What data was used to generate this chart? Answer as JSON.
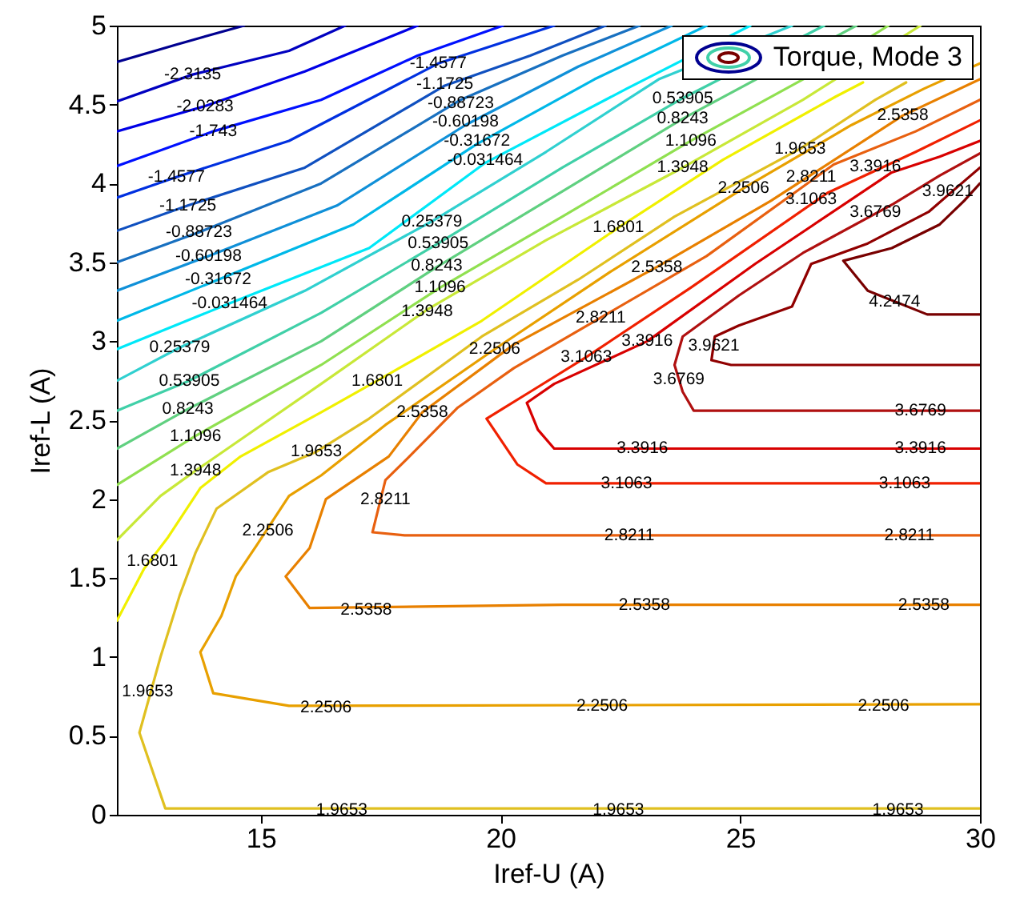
{
  "chart_data": {
    "type": "line",
    "xlabel": "Iref-U (A)",
    "ylabel": "Iref-L (A)",
    "legend_title": "Torque, Mode 3",
    "xlim": [
      12,
      30
    ],
    "ylim": [
      0,
      5
    ],
    "xticks": [
      15,
      20,
      25,
      30
    ],
    "yticks": [
      0,
      0.5,
      1,
      1.5,
      2,
      2.5,
      3,
      3.5,
      4,
      4.5,
      5
    ],
    "series": [
      {
        "color": "#000090",
        "x": [
          12,
          13.24,
          14.65
        ],
        "values": [
          4.77,
          4.88,
          5.0
        ]
      },
      {
        "color": "#0000c0",
        "x": [
          12,
          13.58,
          15.59,
          16.76
        ],
        "values": [
          4.52,
          4.69,
          4.84,
          5.0
        ]
      },
      {
        "color": "#0000e6",
        "x": [
          12,
          13.84,
          15.92,
          18.27
        ],
        "values": [
          4.33,
          4.49,
          4.71,
          5.0
        ]
      },
      {
        "color": "#0010ff",
        "x": [
          12,
          14.01,
          16.26,
          18.27,
          20.05
        ],
        "values": [
          4.11,
          4.33,
          4.53,
          4.81,
          5.0
        ]
      },
      {
        "color": "#0030e0",
        "x": [
          12,
          13.24,
          15.59,
          18.7,
          21.12
        ],
        "values": [
          3.91,
          4.04,
          4.27,
          4.76,
          5.0
        ]
      },
      {
        "color": "#1050c0",
        "x": [
          12,
          13.48,
          15.92,
          18.84,
          20.62,
          22.19
        ],
        "values": [
          3.7,
          3.86,
          4.1,
          4.62,
          4.81,
          5.0
        ]
      },
      {
        "color": "#1870c0",
        "x": [
          12,
          13.71,
          16.26,
          19.17,
          21.29,
          22.9
        ],
        "values": [
          3.5,
          3.69,
          4.0,
          4.53,
          4.81,
          5.0
        ]
      },
      {
        "color": "#1090d8",
        "x": [
          12,
          13.91,
          16.59,
          19.27,
          21.62,
          23.57
        ],
        "values": [
          3.32,
          3.54,
          3.86,
          4.37,
          4.74,
          5.0
        ]
      },
      {
        "color": "#00b8e8",
        "x": [
          12,
          14.11,
          16.93,
          19.51,
          21.96,
          24.3
        ],
        "values": [
          3.13,
          3.39,
          3.74,
          4.25,
          4.66,
          5.0
        ]
      },
      {
        "color": "#00e8f8",
        "x": [
          12,
          14.35,
          17.26,
          19.68,
          22.63,
          25.21
        ],
        "values": [
          2.95,
          3.24,
          3.59,
          4.13,
          4.6,
          5.0
        ]
      },
      {
        "color": "#30d0d0",
        "x": [
          12,
          13.31,
          15.92,
          18.57,
          20.95,
          23.3,
          26.08
        ],
        "values": [
          2.75,
          2.96,
          3.32,
          3.76,
          4.2,
          4.66,
          5.0
        ]
      },
      {
        "color": "#40d0a8",
        "x": [
          12,
          13.51,
          16.26,
          18.7,
          21.29,
          23.8,
          26.75
        ],
        "values": [
          2.56,
          2.75,
          3.18,
          3.62,
          4.1,
          4.54,
          5.0
        ]
      },
      {
        "color": "#60d080",
        "x": [
          12,
          13.48,
          16.26,
          18.67,
          21.29,
          23.8,
          27.42
        ],
        "values": [
          2.32,
          2.57,
          3.0,
          3.47,
          3.95,
          4.41,
          5.0
        ]
      },
      {
        "color": "#90e050",
        "x": [
          12,
          13.64,
          16.26,
          18.74,
          21.29,
          23.97,
          26.31,
          28.09
        ],
        "values": [
          2.09,
          2.4,
          2.85,
          3.34,
          3.79,
          4.27,
          4.66,
          5.0
        ]
      },
      {
        "color": "#c8e838",
        "x": [
          12,
          12.91,
          13.64,
          16.26,
          18.47,
          20.95,
          23.8,
          26.31,
          28.76
        ],
        "values": [
          1.74,
          2.02,
          2.18,
          2.73,
          3.2,
          3.64,
          4.1,
          4.53,
          5.0
        ]
      },
      {
        "color": "#f0f000",
        "x": [
          12,
          12.57,
          13.07,
          13.74,
          14.58,
          16.26,
          17.43,
          19.61,
          22.46,
          24.64,
          26.99,
          27.56
        ],
        "values": [
          1.23,
          1.56,
          1.76,
          2.07,
          2.27,
          2.55,
          2.75,
          3.13,
          3.72,
          4.15,
          4.55,
          4.64
        ]
      },
      {
        "color": "#e0c020",
        "x": [
          30,
          13.01,
          12.47,
          12.91,
          13.31,
          13.64,
          14.08,
          15.15,
          16.16,
          17.26,
          19.61,
          21.62,
          23.63,
          26.25,
          27.82,
          28.46
        ],
        "values": [
          0.04,
          0.04,
          0.52,
          1.0,
          1.39,
          1.66,
          1.94,
          2.17,
          2.3,
          2.51,
          3.03,
          3.39,
          3.79,
          4.22,
          4.53,
          4.64
        ]
      },
      {
        "color": "#e8a000",
        "x": [
          30,
          15.59,
          14.01,
          13.74,
          14.18,
          14.48,
          14.92,
          15.59,
          16.26,
          17.6,
          19.88,
          22.29,
          25.07,
          27.32,
          28.83,
          30
        ],
        "values": [
          0.7,
          0.69,
          0.77,
          1.03,
          1.26,
          1.51,
          1.71,
          2.02,
          2.15,
          2.47,
          2.95,
          3.44,
          3.97,
          4.37,
          4.6,
          4.76
        ]
      },
      {
        "color": "#e88000",
        "x": [
          30,
          21.29,
          16.02,
          15.52,
          16.02,
          16.36,
          17.67,
          18.37,
          20.28,
          23.26,
          25.64,
          28.39,
          30
        ],
        "values": [
          1.33,
          1.33,
          1.31,
          1.51,
          1.69,
          2.0,
          2.27,
          2.55,
          2.98,
          3.47,
          3.89,
          4.43,
          4.66
        ]
      },
      {
        "color": "#e86010",
        "x": [
          30,
          18.0,
          17.33,
          17.6,
          18.1,
          19.11,
          20.28,
          22.09,
          24.3,
          26.95,
          28.66,
          30
        ],
        "values": [
          1.77,
          1.77,
          1.79,
          2.12,
          2.27,
          2.58,
          2.83,
          3.15,
          3.54,
          4.12,
          4.33,
          4.53
        ]
      },
      {
        "color": "#f02000",
        "x": [
          30,
          20.95,
          20.35,
          19.71,
          20.62,
          21.79,
          23.97,
          26.82,
          28.66,
          30
        ],
        "values": [
          2.1,
          2.1,
          2.22,
          2.51,
          2.68,
          2.9,
          3.34,
          3.94,
          4.2,
          4.4
        ]
      },
      {
        "color": "#d80000",
        "x": [
          30,
          21.12,
          20.78,
          20.55,
          21.12,
          23.06,
          25.31,
          28.16,
          29.16,
          30
        ],
        "values": [
          2.32,
          2.32,
          2.44,
          2.61,
          2.73,
          3.0,
          3.49,
          4.07,
          4.17,
          4.27
        ]
      },
      {
        "color": "#b01010",
        "x": [
          30,
          24.03,
          23.8,
          23.63,
          23.8,
          24.97,
          26.31,
          28.19,
          29.16,
          30
        ],
        "values": [
          2.56,
          2.56,
          2.68,
          2.85,
          3.03,
          3.29,
          3.56,
          3.87,
          4.05,
          4.19
        ]
      },
      {
        "color": "#900000",
        "x": [
          30,
          24.81,
          24.4,
          24.47,
          24.97,
          26.08,
          26.48,
          27.66,
          28.93,
          29.5,
          30
        ],
        "values": [
          2.85,
          2.85,
          2.88,
          3.03,
          3.1,
          3.22,
          3.49,
          3.62,
          3.82,
          3.97,
          4.1
        ]
      },
      {
        "color": "#780000",
        "x": [
          30,
          28.9,
          27.66,
          27.15,
          28.16,
          29.16,
          29.67,
          30
        ],
        "values": [
          3.17,
          3.17,
          3.32,
          3.51,
          3.59,
          3.74,
          3.89,
          4.0
        ]
      }
    ],
    "annotations": [
      {
        "text": "-2.3135",
        "x": 13.58,
        "y": 4.69
      },
      {
        "text": "-2.0283",
        "x": 13.84,
        "y": 4.49
      },
      {
        "text": "-1.743",
        "x": 14.01,
        "y": 4.33
      },
      {
        "text": "-1.4577",
        "x": 13.24,
        "y": 4.04
      },
      {
        "text": "-1.1725",
        "x": 13.48,
        "y": 3.86
      },
      {
        "text": "-0.88723",
        "x": 13.71,
        "y": 3.69
      },
      {
        "text": "-0.60198",
        "x": 13.91,
        "y": 3.54
      },
      {
        "text": "-0.31672",
        "x": 14.11,
        "y": 3.39
      },
      {
        "text": "-0.031464",
        "x": 14.35,
        "y": 3.24
      },
      {
        "text": "0.25379",
        "x": 13.31,
        "y": 2.96
      },
      {
        "text": "0.53905",
        "x": 13.51,
        "y": 2.75
      },
      {
        "text": "0.8243",
        "x": 13.48,
        "y": 2.57
      },
      {
        "text": "1.1096",
        "x": 13.64,
        "y": 2.4
      },
      {
        "text": "1.3948",
        "x": 13.64,
        "y": 2.18
      },
      {
        "text": "1.6801",
        "x": 12.74,
        "y": 1.61
      },
      {
        "text": "1.9653",
        "x": 12.64,
        "y": 0.78
      },
      {
        "text": "-1.4577",
        "x": 18.7,
        "y": 4.76
      },
      {
        "text": "-1.1725",
        "x": 18.84,
        "y": 4.63
      },
      {
        "text": "-0.88723",
        "x": 19.17,
        "y": 4.51
      },
      {
        "text": "-0.60198",
        "x": 19.27,
        "y": 4.39
      },
      {
        "text": "-0.31672",
        "x": 19.51,
        "y": 4.27
      },
      {
        "text": "-0.031464",
        "x": 19.68,
        "y": 4.15
      },
      {
        "text": "0.25379",
        "x": 18.57,
        "y": 3.76
      },
      {
        "text": "0.53905",
        "x": 18.7,
        "y": 3.62
      },
      {
        "text": "0.8243",
        "x": 18.67,
        "y": 3.48
      },
      {
        "text": "1.1096",
        "x": 18.74,
        "y": 3.34
      },
      {
        "text": "1.3948",
        "x": 18.47,
        "y": 3.19
      },
      {
        "text": "1.6801",
        "x": 17.43,
        "y": 2.75
      },
      {
        "text": "2.2506",
        "x": 19.88,
        "y": 2.95
      },
      {
        "text": "2.5358",
        "x": 18.37,
        "y": 2.55
      },
      {
        "text": "1.9653",
        "x": 16.16,
        "y": 2.3
      },
      {
        "text": "2.2506",
        "x": 15.15,
        "y": 1.8
      },
      {
        "text": "2.8211",
        "x": 17.6,
        "y": 2.0
      },
      {
        "text": "2.5358",
        "x": 17.2,
        "y": 1.3
      },
      {
        "text": "2.2506",
        "x": 16.36,
        "y": 0.68
      },
      {
        "text": "1.9653",
        "x": 16.69,
        "y": 0.03
      },
      {
        "text": "3.3916",
        "x": 22.96,
        "y": 2.32
      },
      {
        "text": "3.3916",
        "x": 28.76,
        "y": 2.32
      },
      {
        "text": "3.1063",
        "x": 22.63,
        "y": 2.1
      },
      {
        "text": "3.1063",
        "x": 28.43,
        "y": 2.1
      },
      {
        "text": "2.8211",
        "x": 22.69,
        "y": 1.77
      },
      {
        "text": "2.8211",
        "x": 28.53,
        "y": 1.77
      },
      {
        "text": "2.5358",
        "x": 23.0,
        "y": 1.33
      },
      {
        "text": "2.5358",
        "x": 28.83,
        "y": 1.33
      },
      {
        "text": "2.2506",
        "x": 22.12,
        "y": 0.69
      },
      {
        "text": "2.2506",
        "x": 27.99,
        "y": 0.69
      },
      {
        "text": "1.9653",
        "x": 22.46,
        "y": 0.03
      },
      {
        "text": "1.9653",
        "x": 28.29,
        "y": 0.03
      },
      {
        "text": "0.53905",
        "x": 23.8,
        "y": 4.54
      },
      {
        "text": "0.8243",
        "x": 23.8,
        "y": 4.41
      },
      {
        "text": "1.1096",
        "x": 23.97,
        "y": 4.27
      },
      {
        "text": "1.3948",
        "x": 23.8,
        "y": 4.1
      },
      {
        "text": "1.6801",
        "x": 22.46,
        "y": 3.72
      },
      {
        "text": "1.9653",
        "x": 26.25,
        "y": 4.22
      },
      {
        "text": "2.2506",
        "x": 25.07,
        "y": 3.97
      },
      {
        "text": "2.5358",
        "x": 23.26,
        "y": 3.47
      },
      {
        "text": "2.5358",
        "x": 28.39,
        "y": 4.43
      },
      {
        "text": "2.8211",
        "x": 22.09,
        "y": 3.15
      },
      {
        "text": "2.8211",
        "x": 26.48,
        "y": 4.04
      },
      {
        "text": "3.1063",
        "x": 21.79,
        "y": 2.9
      },
      {
        "text": "3.1063",
        "x": 26.48,
        "y": 3.9
      },
      {
        "text": "3.3916",
        "x": 23.06,
        "y": 3.0
      },
      {
        "text": "3.3916",
        "x": 27.82,
        "y": 4.11
      },
      {
        "text": "3.6769",
        "x": 27.82,
        "y": 3.82
      },
      {
        "text": "3.9621",
        "x": 29.33,
        "y": 3.95
      },
      {
        "text": "4.2474",
        "x": 28.22,
        "y": 3.25
      },
      {
        "text": "3.6769",
        "x": 23.72,
        "y": 2.76
      },
      {
        "text": "3.9621",
        "x": 24.45,
        "y": 2.97
      },
      {
        "text": "3.6769",
        "x": 28.76,
        "y": 2.56
      }
    ]
  }
}
